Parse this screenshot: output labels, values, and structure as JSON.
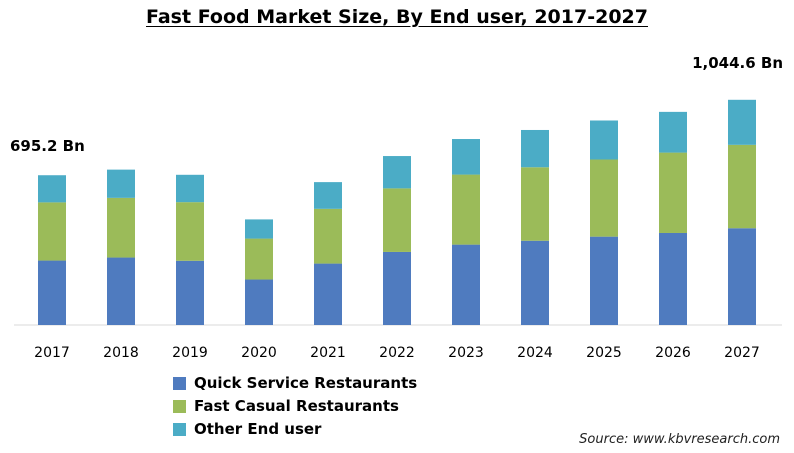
{
  "chart_data": {
    "type": "bar",
    "stacked": true,
    "title": "Fast Food Market Size, By End user, 2017-2027",
    "xlabel": "",
    "ylabel": "",
    "ylim": [
      0,
      1200
    ],
    "grid": false,
    "legend_position": "bottom-left",
    "categories": [
      "2017",
      "2018",
      "2019",
      "2020",
      "2021",
      "2022",
      "2023",
      "2024",
      "2025",
      "2026",
      "2027"
    ],
    "series": [
      {
        "name": "Quick Service Restaurants",
        "color": "#4f7bbf",
        "values": [
          299,
          313,
          298,
          211,
          285,
          339,
          373,
          391,
          410,
          427,
          449
        ]
      },
      {
        "name": "Fast Casual Restaurants",
        "color": "#9bbb59",
        "values": [
          270,
          277,
          272,
          190,
          254,
          295,
          325,
          341,
          358,
          373,
          387
        ]
      },
      {
        "name": "Other End user",
        "color": "#4bacc6",
        "values": [
          126,
          131,
          127,
          89,
          124,
          150,
          165,
          173,
          181,
          189,
          209
        ]
      }
    ],
    "annotations": [
      {
        "category": "2017",
        "text": "695.2 Bn"
      },
      {
        "category": "2027",
        "text": "1,044.6 Bn"
      }
    ]
  },
  "source": "Source: www.kbvresearch.com"
}
